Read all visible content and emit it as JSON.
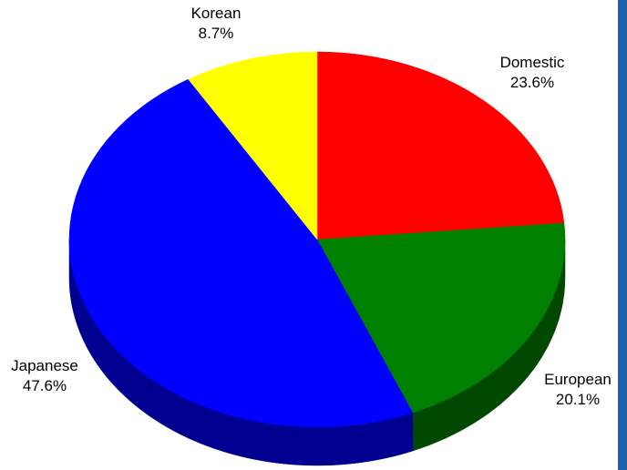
{
  "chart_data": {
    "type": "pie",
    "style": "3d",
    "title": "",
    "slices": [
      {
        "label": "Domestic",
        "value": 23.6,
        "value_label": "23.6%",
        "color": "#ff0000",
        "side_color": "#a00000"
      },
      {
        "label": "European",
        "value": 20.1,
        "value_label": "20.1%",
        "color": "#008000",
        "side_color": "#004800"
      },
      {
        "label": "Japanese",
        "value": 47.6,
        "value_label": "47.6%",
        "color": "#0000ff",
        "side_color": "#000090"
      },
      {
        "label": "Korean",
        "value": 8.7,
        "value_label": "8.7%",
        "color": "#ffff00",
        "side_color": "#a0a000"
      }
    ]
  },
  "frame_color": "#1f5fa6"
}
